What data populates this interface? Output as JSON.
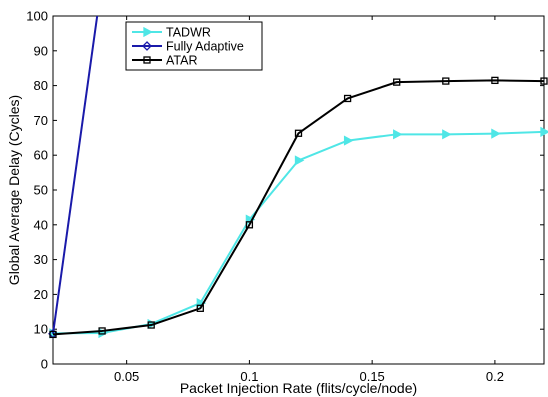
{
  "chart_data": {
    "type": "line",
    "title": "",
    "xlabel": "Packet Injection Rate (flits/cycle/node)",
    "ylabel": "Global Average Delay (Cycles)",
    "xlim": [
      0.02,
      0.22
    ],
    "ylim": [
      0,
      100
    ],
    "xticks": [
      0.05,
      0.1,
      0.15,
      0.2
    ],
    "xtick_labels": [
      "0.05",
      "0.1",
      "0.15",
      "0.2"
    ],
    "yticks": [
      0,
      10,
      20,
      30,
      40,
      50,
      60,
      70,
      80,
      90,
      100
    ],
    "ytick_labels": [
      "0",
      "10",
      "20",
      "30",
      "40",
      "50",
      "60",
      "70",
      "80",
      "90",
      "100"
    ],
    "grid": false,
    "legend_position": "top-left",
    "series": [
      {
        "name": "TADWR",
        "color": "#4fe6e6",
        "marker": "triangle-right",
        "x": [
          0.02,
          0.04,
          0.06,
          0.08,
          0.1,
          0.12,
          0.14,
          0.16,
          0.18,
          0.2,
          0.22
        ],
        "y": [
          8.8,
          8.9,
          11.5,
          17.5,
          41.5,
          58.5,
          64.2,
          66,
          66,
          66.2,
          66.7
        ]
      },
      {
        "name": "Fully Adaptive",
        "color": "#1a1aaa",
        "marker": "diamond",
        "x": [
          0.02,
          0.038
        ],
        "y": [
          8.7,
          100
        ]
      },
      {
        "name": "ATAR",
        "color": "#000000",
        "marker": "square",
        "x": [
          0.02,
          0.04,
          0.06,
          0.08,
          0.1,
          0.12,
          0.14,
          0.16,
          0.18,
          0.2,
          0.22
        ],
        "y": [
          8.5,
          9.5,
          11.2,
          16,
          40,
          66.3,
          76.3,
          81,
          81.3,
          81.5,
          81.3
        ]
      }
    ]
  }
}
